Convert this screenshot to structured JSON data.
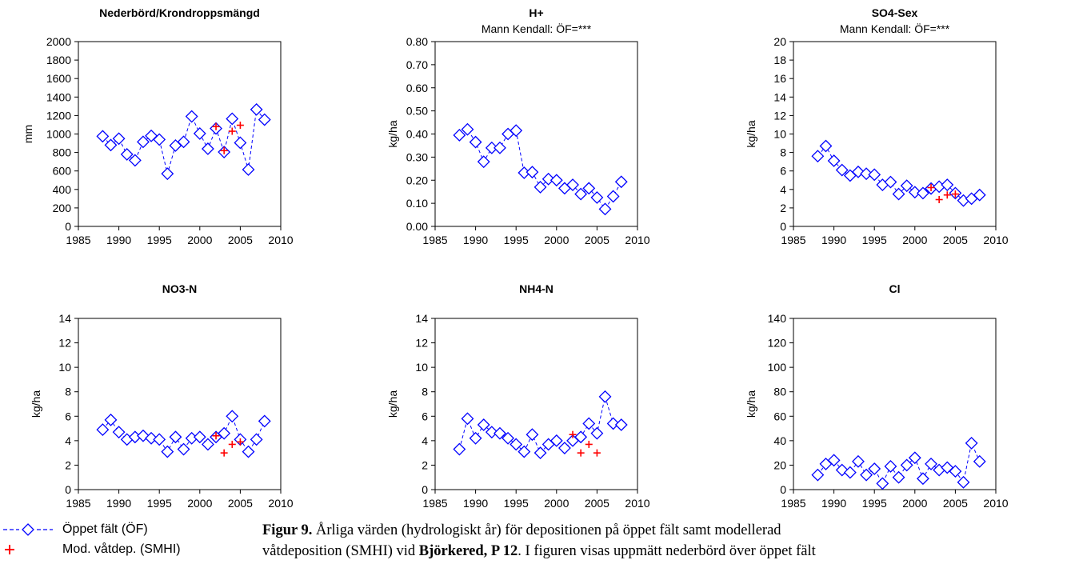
{
  "chart_data": [
    {
      "type": "scatter",
      "title": "Nederbörd/Krondroppsmängd",
      "subtitle": "",
      "ylabel": "mm",
      "xlim": [
        1985,
        2010
      ],
      "ylim": [
        0,
        2000
      ],
      "xticks": [
        1985,
        1990,
        1995,
        2000,
        2005,
        2010
      ],
      "yticks": [
        0,
        200,
        400,
        600,
        800,
        1000,
        1200,
        1400,
        1600,
        1800,
        2000
      ],
      "ytick_labels": [
        "0",
        "200",
        "400",
        "600",
        "800",
        "1000",
        "1200",
        "1400",
        "1600",
        "1800",
        "2000"
      ],
      "series": [
        {
          "name": "Öppet fält (ÖF)",
          "marker": "diamond",
          "color": "#0000ff",
          "x": [
            1988,
            1989,
            1990,
            1991,
            1992,
            1993,
            1994,
            1995,
            1996,
            1997,
            1998,
            1999,
            2000,
            2001,
            2002,
            2003,
            2004,
            2005,
            2006,
            2007,
            2008
          ],
          "y": [
            975,
            880,
            950,
            780,
            715,
            915,
            980,
            940,
            570,
            875,
            915,
            1190,
            1005,
            840,
            1060,
            805,
            1165,
            905,
            615,
            1265,
            1155
          ]
        },
        {
          "name": "Mod. våtdep. (SMHI)",
          "marker": "plus",
          "color": "#ff0000",
          "x": [
            2002,
            2003,
            2004,
            2005
          ],
          "y": [
            1080,
            820,
            1030,
            1095
          ]
        }
      ]
    },
    {
      "type": "scatter",
      "title": "H+",
      "subtitle": "Mann Kendall: ÖF=***",
      "ylabel": "kg/ha",
      "xlim": [
        1985,
        2010
      ],
      "ylim": [
        0,
        0.8
      ],
      "xticks": [
        1985,
        1990,
        1995,
        2000,
        2005,
        2010
      ],
      "yticks": [
        0,
        0.1,
        0.2,
        0.3,
        0.4,
        0.5,
        0.6,
        0.7,
        0.8
      ],
      "ytick_labels": [
        "0.00",
        "0.10",
        "0.20",
        "0.30",
        "0.40",
        "0.50",
        "0.60",
        "0.70",
        "0.80"
      ],
      "series": [
        {
          "name": "Öppet fält (ÖF)",
          "marker": "diamond",
          "color": "#0000ff",
          "x": [
            1988,
            1989,
            1990,
            1991,
            1992,
            1993,
            1994,
            1995,
            1996,
            1997,
            1998,
            1999,
            2000,
            2001,
            2002,
            2003,
            2004,
            2005,
            2006,
            2007,
            2008
          ],
          "y": [
            0.395,
            0.42,
            0.365,
            0.28,
            0.34,
            0.34,
            0.4,
            0.415,
            0.232,
            0.235,
            0.17,
            0.205,
            0.2,
            0.165,
            0.18,
            0.14,
            0.165,
            0.125,
            0.075,
            0.13,
            0.193
          ]
        }
      ]
    },
    {
      "type": "scatter",
      "title": "SO4-Sex",
      "subtitle": "Mann Kendall: ÖF=***",
      "ylabel": "kg/ha",
      "xlim": [
        1985,
        2010
      ],
      "ylim": [
        0,
        20
      ],
      "xticks": [
        1985,
        1990,
        1995,
        2000,
        2005,
        2010
      ],
      "yticks": [
        0,
        2,
        4,
        6,
        8,
        10,
        12,
        14,
        16,
        18,
        20
      ],
      "ytick_labels": [
        "0",
        "2",
        "4",
        "6",
        "8",
        "10",
        "12",
        "14",
        "16",
        "18",
        "20"
      ],
      "series": [
        {
          "name": "Öppet fält (ÖF)",
          "marker": "diamond",
          "color": "#0000ff",
          "x": [
            1988,
            1989,
            1990,
            1991,
            1992,
            1993,
            1994,
            1995,
            1996,
            1997,
            1998,
            1999,
            2000,
            2001,
            2002,
            2003,
            2004,
            2005,
            2006,
            2007,
            2008
          ],
          "y": [
            7.6,
            8.7,
            7.1,
            6.1,
            5.5,
            5.9,
            5.7,
            5.6,
            4.5,
            4.8,
            3.5,
            4.4,
            3.7,
            3.6,
            4.1,
            4.3,
            4.5,
            3.6,
            2.8,
            3.0,
            3.4
          ]
        },
        {
          "name": "Mod. våtdep. (SMHI)",
          "marker": "plus",
          "color": "#ff0000",
          "x": [
            2002,
            2003,
            2004,
            2005
          ],
          "y": [
            4.2,
            2.9,
            3.4,
            3.5
          ]
        }
      ]
    },
    {
      "type": "scatter",
      "title": "NO3-N",
      "subtitle": "",
      "ylabel": "kg/ha",
      "xlim": [
        1985,
        2010
      ],
      "ylim": [
        0,
        14
      ],
      "xticks": [
        1985,
        1990,
        1995,
        2000,
        2005,
        2010
      ],
      "yticks": [
        0,
        2,
        4,
        6,
        8,
        10,
        12,
        14
      ],
      "ytick_labels": [
        "0",
        "2",
        "4",
        "6",
        "8",
        "10",
        "12",
        "14"
      ],
      "series": [
        {
          "name": "Öppet fält (ÖF)",
          "marker": "diamond",
          "color": "#0000ff",
          "x": [
            1988,
            1989,
            1990,
            1991,
            1992,
            1993,
            1994,
            1995,
            1996,
            1997,
            1998,
            1999,
            2000,
            2001,
            2002,
            2003,
            2004,
            2005,
            2006,
            2007,
            2008
          ],
          "y": [
            4.9,
            5.7,
            4.7,
            4.1,
            4.3,
            4.4,
            4.2,
            4.1,
            3.1,
            4.3,
            3.3,
            4.2,
            4.3,
            3.7,
            4.3,
            4.6,
            6.0,
            4.1,
            3.1,
            4.1,
            5.6
          ]
        },
        {
          "name": "Mod. våtdep. (SMHI)",
          "marker": "plus",
          "color": "#ff0000",
          "x": [
            2002,
            2003,
            2004,
            2005
          ],
          "y": [
            4.4,
            3.0,
            3.7,
            3.9
          ]
        }
      ]
    },
    {
      "type": "scatter",
      "title": "NH4-N",
      "subtitle": "",
      "ylabel": "kg/ha",
      "xlim": [
        1985,
        2010
      ],
      "ylim": [
        0,
        14
      ],
      "xticks": [
        1985,
        1990,
        1995,
        2000,
        2005,
        2010
      ],
      "yticks": [
        0,
        2,
        4,
        6,
        8,
        10,
        12,
        14
      ],
      "ytick_labels": [
        "0",
        "2",
        "4",
        "6",
        "8",
        "10",
        "12",
        "14"
      ],
      "series": [
        {
          "name": "Öppet fält (ÖF)",
          "marker": "diamond",
          "color": "#0000ff",
          "x": [
            1988,
            1989,
            1990,
            1991,
            1992,
            1993,
            1994,
            1995,
            1996,
            1997,
            1998,
            1999,
            2000,
            2001,
            2002,
            2003,
            2004,
            2005,
            2006,
            2007,
            2008
          ],
          "y": [
            3.3,
            5.8,
            4.2,
            5.3,
            4.7,
            4.6,
            4.2,
            3.7,
            3.1,
            4.5,
            3.0,
            3.7,
            4.0,
            3.4,
            4.0,
            4.3,
            5.4,
            4.6,
            7.6,
            5.4,
            5.3
          ]
        },
        {
          "name": "Mod. våtdep. (SMHI)",
          "marker": "plus",
          "color": "#ff0000",
          "x": [
            2002,
            2003,
            2004,
            2005
          ],
          "y": [
            4.5,
            3.0,
            3.7,
            3.0
          ]
        }
      ]
    },
    {
      "type": "scatter",
      "title": "Cl",
      "subtitle": "",
      "ylabel": "kg/ha",
      "xlim": [
        1985,
        2010
      ],
      "ylim": [
        0,
        140
      ],
      "xticks": [
        1985,
        1990,
        1995,
        2000,
        2005,
        2010
      ],
      "yticks": [
        0,
        20,
        40,
        60,
        80,
        100,
        120,
        140
      ],
      "ytick_labels": [
        "0",
        "20",
        "40",
        "60",
        "80",
        "100",
        "120",
        "140"
      ],
      "series": [
        {
          "name": "Öppet fält (ÖF)",
          "marker": "diamond",
          "color": "#0000ff",
          "x": [
            1988,
            1989,
            1990,
            1991,
            1992,
            1993,
            1994,
            1995,
            1996,
            1997,
            1998,
            1999,
            2000,
            2001,
            2002,
            2003,
            2004,
            2005,
            2006,
            2007,
            2008
          ],
          "y": [
            12,
            21,
            24,
            16,
            14,
            23,
            12,
            17,
            5,
            19,
            10,
            20,
            26,
            9,
            21,
            16,
            18,
            15,
            6,
            38,
            23
          ]
        }
      ]
    }
  ],
  "legend": {
    "items": [
      {
        "label": "Öppet fält (ÖF)",
        "marker": "diamond",
        "color": "#0000ff"
      },
      {
        "label": "Mod. våtdep. (SMHI)",
        "marker": "plus",
        "color": "#ff0000"
      }
    ]
  },
  "caption": {
    "label": "Figur 9.",
    "line1": " Årliga värden (hydrologiskt år) för depositionen på öppet fält samt modellerad",
    "line2_pre": "våtdeposition (SMHI) vid ",
    "site": "Björkered, P 12",
    "line2_post": ". I figuren visas uppmätt nederbörd över öppet fält"
  }
}
